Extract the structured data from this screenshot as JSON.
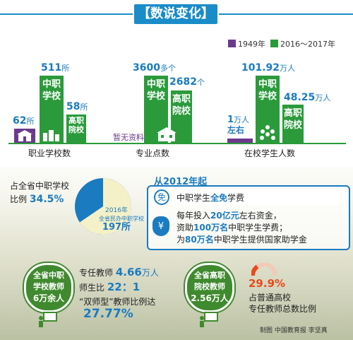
{
  "title": "【数说变化】",
  "legend": [
    {
      "label": "1949年",
      "color": "#6b3a8c"
    },
    {
      "label": "2016～2017年",
      "color": "#2b9a3b"
    }
  ],
  "chart_data": {
    "type": "bar",
    "categories": [
      "职业学校数",
      "专业点数",
      "在校学生人数"
    ],
    "series": [
      {
        "name": "1949年",
        "values": [
          62,
          null,
          1
        ],
        "labels": [
          "62所",
          "暂无资料",
          "1万人左右"
        ]
      },
      {
        "name": "2016～2017年",
        "values": [
          511,
          3600,
          101.92
        ],
        "labels": [
          "511所",
          "3600多个",
          "101.92万人"
        ],
        "inner": "中职学校"
      },
      {
        "name": "2016～2017年",
        "values": [
          58,
          2682,
          48.25
        ],
        "labels": [
          "58所",
          "2682个",
          "48.25万人"
        ],
        "inner": "高职院校"
      }
    ]
  },
  "groups": [
    {
      "category": "职业学校数",
      "p_val": "62",
      "p_unit": "所",
      "g1_val": "511",
      "g1_unit": "所",
      "g1_inner": "中职学校",
      "g2_val": "58",
      "g2_unit": "所",
      "g2_inner": "高职院校"
    },
    {
      "category": "专业点数",
      "p_note": "暂无资料",
      "g1_val": "3600",
      "g1_unit": "多个",
      "g1_inner": "中职学校",
      "g2_val": "2682",
      "g2_unit": "个",
      "g2_inner": "高职院校"
    },
    {
      "category": "在校学生人数",
      "p_val": "1",
      "p_unit": "万人",
      "p_extra": "左右",
      "g1_val": "101.92",
      "g1_unit": "万人",
      "g1_inner": "中职学校",
      "g2_val": "48.25",
      "g2_unit": "万人",
      "g2_inner": "高职院校"
    }
  ],
  "pie": {
    "label_a": "占全省中职学校",
    "label_b": "比例",
    "percent": "34.5%",
    "share": 0.345,
    "inner_a": "2016年",
    "inner_b": "全省民办中职学校",
    "inner_value": "197所"
  },
  "since": {
    "title": "从2012年起",
    "line1_a": "中职学生",
    "line1_b": "全免",
    "line1_c": "学费",
    "line2_a": "每年投入",
    "line2_b": "20亿元",
    "line2_c": "左右资金，",
    "line3_a": "资助",
    "line3_b": "100万名",
    "line3_c": "中职学生学费；",
    "line4_a": "为",
    "line4_b": "80万名",
    "line4_c": "中职学生提供国家助学金"
  },
  "teachers_sec": {
    "badge_a": "全省中职",
    "badge_b": "学校教师",
    "badge_c": "6万余人",
    "full_a": "专任教师",
    "full_val": "4.66",
    "full_unit": "万人",
    "ratio_a": "师生比",
    "ratio_val": "22：1",
    "dual_a": "“双师型”教师比例达",
    "dual_val": "27.77%"
  },
  "teachers_high": {
    "badge_a": "全省高职",
    "badge_b": "院校教师",
    "badge_c": "2.56万人",
    "percent": "29.9%",
    "share": 0.299,
    "text_a": "占普通高校",
    "text_b": "专任教师总数比例"
  },
  "credit": "制图 中国教育报 李坚真"
}
